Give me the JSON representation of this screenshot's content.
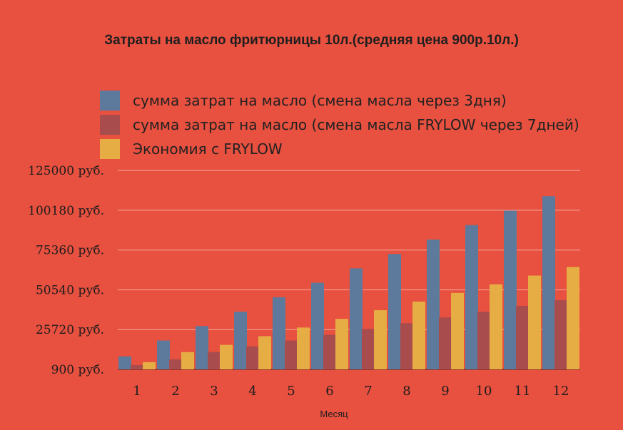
{
  "chart_data": {
    "type": "bar",
    "title": "Затраты на масло фритюрницы 10л.(средняя цена 900р.10л.)",
    "xlabel": "Месяц",
    "ylabel": "",
    "categories": [
      "1",
      "2",
      "3",
      "4",
      "5",
      "6",
      "7",
      "8",
      "9",
      "10",
      "11",
      "12"
    ],
    "y_ticks": [
      "125000 руб.",
      "100180 руб.",
      "75360 руб.",
      "50540 руб.",
      "25720 руб.",
      "900 руб."
    ],
    "y_tick_values": [
      125000,
      100180,
      75360,
      50540,
      25720,
      900
    ],
    "ylim": [
      900,
      125000
    ],
    "grid": true,
    "legend_position": "top-left",
    "series": [
      {
        "name": "сумма затрат на масло (смена масла через 3дня)",
        "color": "#5d7a9c",
        "values": [
          9000,
          18900,
          27900,
          36900,
          45900,
          54900,
          63900,
          72900,
          81900,
          90900,
          99900,
          108900
        ]
      },
      {
        "name": "сумма затрат на масло (смена масла FRYLOW через 7дней)",
        "color": "#a94c4e",
        "values": [
          3600,
          7200,
          11700,
          15300,
          18900,
          22500,
          26100,
          29700,
          33300,
          36900,
          40500,
          44100
        ]
      },
      {
        "name": "Экономия с FRYLOW",
        "color": "#e7ad45",
        "values": [
          5400,
          11700,
          16200,
          21600,
          27000,
          32400,
          37800,
          43200,
          48600,
          54000,
          59400,
          64800
        ]
      }
    ]
  }
}
